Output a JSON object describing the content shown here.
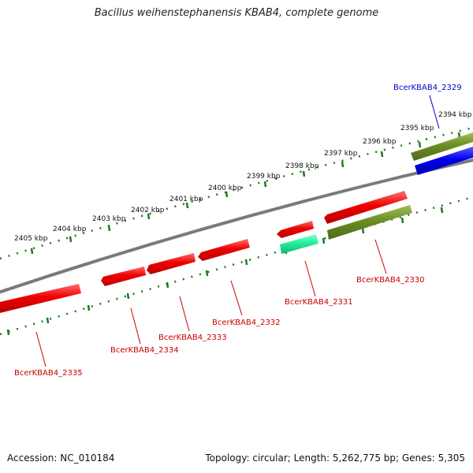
{
  "title": "Bacillus weihenstephanensis KBAB4, complete genome",
  "footer": {
    "accession": "Accession: NC_010184",
    "topology": "Topology: circular; Length: 5,262,775 bp; Genes: 5,305"
  },
  "colors": {
    "backbone": "#7a7a7a",
    "ticks": "#1a7a1a",
    "gene_red": "#ee0000",
    "gene_olive": "#6b8e23",
    "gene_blue": "#0000ee",
    "gene_aqua": "#00ee88",
    "label_red": "#cc0000",
    "label_blue": "#0000cc"
  },
  "scale_labels": [
    "2394 kbp",
    "2395 kbp",
    "2396 kbp",
    "2397 kbp",
    "2398 kbp",
    "2399 kbp",
    "2400 kbp",
    "2401 kbp",
    "2402 kbp",
    "2403 kbp",
    "2404 kbp",
    "2405 kbp"
  ],
  "genes": [
    {
      "name": "BcerKBAB4_2329",
      "color": "blue"
    },
    {
      "name": "BcerKBAB4_2330",
      "color": "red"
    },
    {
      "name": "BcerKBAB4_2331",
      "color": "red"
    },
    {
      "name": "BcerKBAB4_2332",
      "color": "red"
    },
    {
      "name": "BcerKBAB4_2333",
      "color": "red"
    },
    {
      "name": "BcerKBAB4_2334",
      "color": "red"
    },
    {
      "name": "BcerKBAB4_2335",
      "color": "red"
    }
  ]
}
